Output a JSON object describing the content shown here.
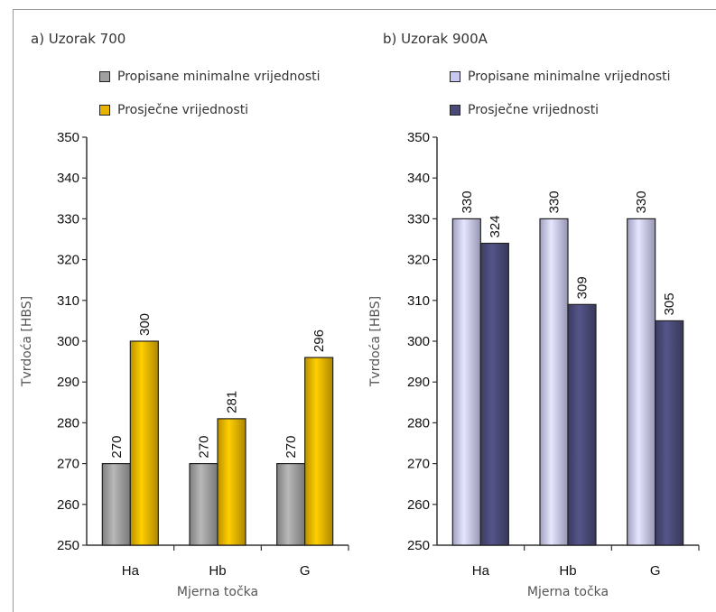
{
  "chart_data": [
    {
      "type": "bar",
      "title": "a) Uzorak 700",
      "categories": [
        "Ha",
        "Hb",
        "G"
      ],
      "series": [
        {
          "name": "Propisane minimalne vrijednosti",
          "values": [
            270,
            270,
            270
          ],
          "color": "#a0a0a0"
        },
        {
          "name": "Prosječne vrijednosti",
          "values": [
            300,
            281,
            296
          ],
          "color": "#e8b400"
        }
      ],
      "xlabel": "Mjerna točka",
      "ylabel": "Tvrdoća [HBS]",
      "ylim": [
        250,
        350
      ],
      "yticks": [
        250,
        260,
        270,
        280,
        290,
        300,
        310,
        320,
        330,
        340,
        350
      ],
      "legend": "top-left",
      "grid": false
    },
    {
      "type": "bar",
      "title": "b) Uzorak 900A",
      "categories": [
        "Ha",
        "Hb",
        "G"
      ],
      "series": [
        {
          "name": "Propisane minimalne vrijednosti",
          "values": [
            330,
            330,
            330
          ],
          "color": "#c8c8f0"
        },
        {
          "name": "Prosječne vrijednosti",
          "values": [
            324,
            309,
            305
          ],
          "color": "#4a4a78"
        }
      ],
      "xlabel": "Mjerna točka",
      "ylabel": "Tvrdoća [HBS]",
      "ylim": [
        250,
        350
      ],
      "yticks": [
        250,
        260,
        270,
        280,
        290,
        300,
        310,
        320,
        330,
        340,
        350
      ],
      "legend": "top-left",
      "grid": false
    }
  ]
}
